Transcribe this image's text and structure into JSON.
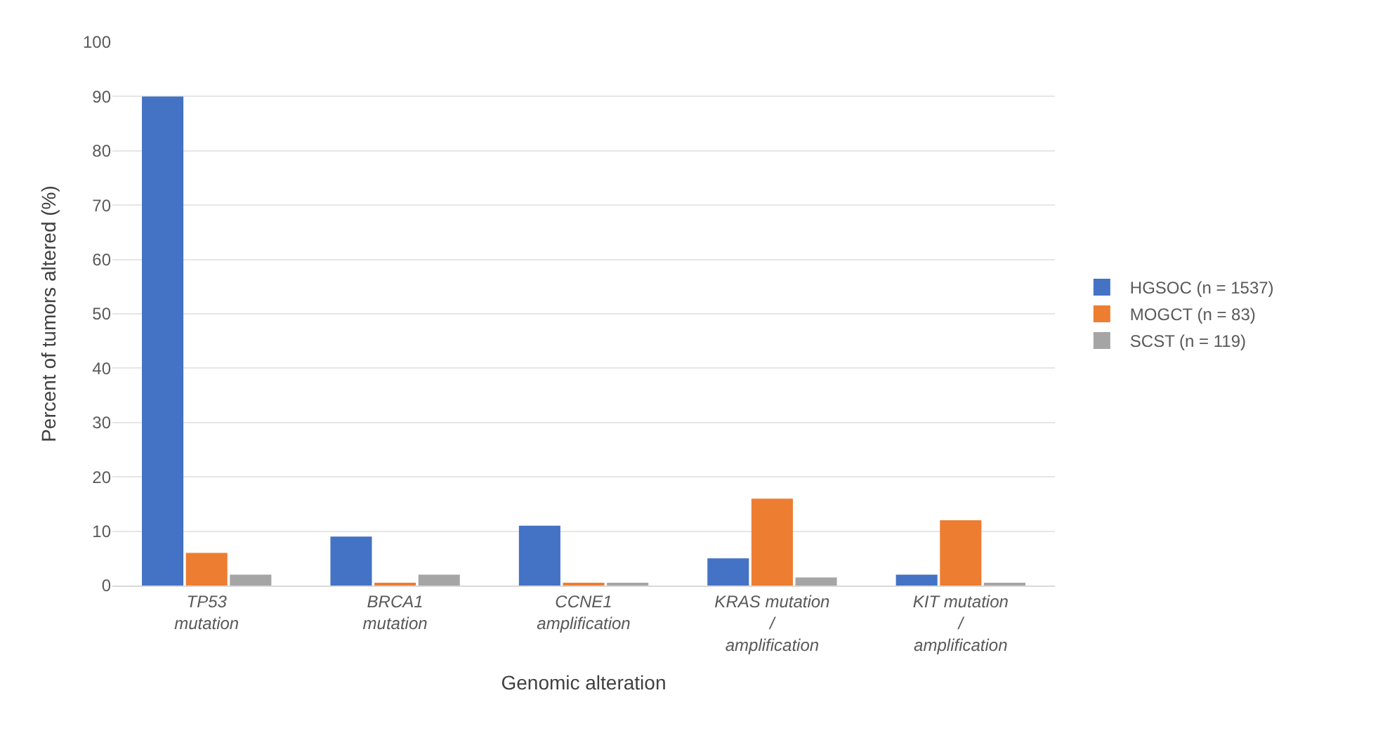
{
  "chart_data": {
    "type": "bar",
    "xlabel": "Genomic alteration",
    "ylabel": "Percent of tumors altered (%)",
    "categories": [
      "TP53 mutation",
      "BRCA1 mutation",
      "CCNE1 amplification",
      "KRAS mutation / amplification",
      "KIT mutation / amplification"
    ],
    "series": [
      {
        "name": "HGSOC (n = 1537)",
        "color": "#4472c4",
        "values": [
          90,
          9,
          11,
          5,
          2
        ]
      },
      {
        "name": "MOGCT (n = 83)",
        "color": "#ed7d31",
        "values": [
          6,
          0.5,
          0.5,
          16,
          12
        ]
      },
      {
        "name": "SCST (n = 119)",
        "color": "#a5a5a5",
        "values": [
          2,
          2,
          0.3,
          1.5,
          0.3
        ]
      }
    ],
    "ylim": [
      0,
      100
    ],
    "yticks": [
      0,
      10,
      20,
      30,
      40,
      50,
      60,
      70,
      80,
      90,
      100
    ],
    "grid": "y",
    "legend": "right"
  }
}
